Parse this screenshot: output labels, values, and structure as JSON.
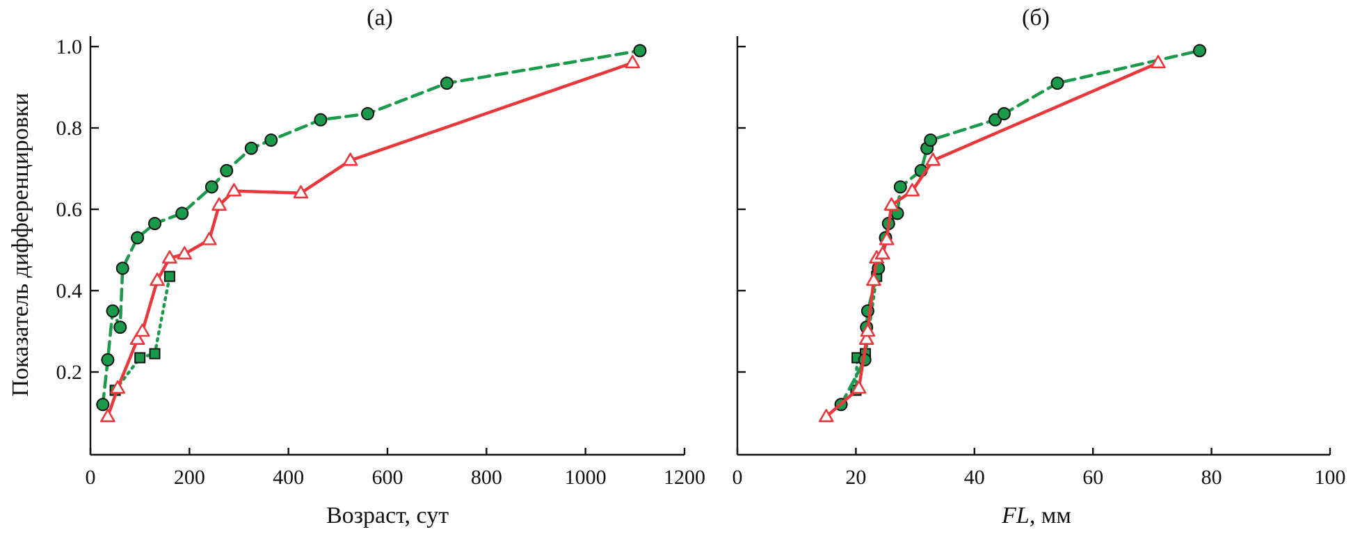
{
  "chart_data": [
    {
      "type": "line",
      "title": "(а)",
      "xlabel": "Возраст, сут",
      "ylabel": "Показатель дифференцировки",
      "xlim": [
        0,
        1200
      ],
      "ylim": [
        0,
        1.0
      ],
      "xticks": [
        "0",
        "200",
        "400",
        "600",
        "800",
        "1000",
        "1200"
      ],
      "yticks": [
        "0.2",
        "0.4",
        "0.6",
        "0.8",
        "1.0"
      ],
      "grid": false,
      "series": [
        {
          "marker": "circle",
          "line": "dashed",
          "color": "#1a9a4a",
          "x": [
            25,
            35,
            45,
            60,
            65,
            95,
            130,
            185,
            245,
            275,
            325,
            365,
            465,
            560,
            720,
            1110
          ],
          "y": [
            0.12,
            0.23,
            0.35,
            0.31,
            0.455,
            0.53,
            0.565,
            0.59,
            0.655,
            0.695,
            0.75,
            0.77,
            0.82,
            0.835,
            0.91,
            0.99
          ]
        },
        {
          "marker": "triangle",
          "line": "solid",
          "color": "#e8383c",
          "x": [
            35,
            55,
            95,
            105,
            135,
            160,
            190,
            240,
            260,
            290,
            425,
            525,
            1095
          ],
          "y": [
            0.09,
            0.16,
            0.28,
            0.3,
            0.425,
            0.48,
            0.49,
            0.525,
            0.61,
            0.645,
            0.64,
            0.72,
            0.96
          ]
        },
        {
          "marker": "square",
          "line": "dotted",
          "color": "#1a9a4a",
          "x": [
            50,
            100,
            130,
            160
          ],
          "y": [
            0.155,
            0.235,
            0.245,
            0.435
          ]
        }
      ]
    },
    {
      "type": "line",
      "title": "(б)",
      "xlabel_italic": "FL",
      "xlabel_rest": ", мм",
      "xlim": [
        0,
        100
      ],
      "ylim": [
        0,
        1.0
      ],
      "xticks": [
        "0",
        "20",
        "40",
        "60",
        "80",
        "100"
      ],
      "grid": false,
      "series": [
        {
          "marker": "circle",
          "line": "dashed",
          "color": "#1a9a4a",
          "x": [
            17.5,
            21.5,
            21.8,
            22.0,
            23.8,
            25.0,
            25.5,
            27.0,
            27.5,
            31.0,
            32.0,
            32.6,
            43.5,
            45.0,
            54.0,
            78.0
          ],
          "y": [
            0.12,
            0.23,
            0.31,
            0.35,
            0.455,
            0.53,
            0.565,
            0.59,
            0.655,
            0.695,
            0.75,
            0.77,
            0.82,
            0.835,
            0.91,
            0.99
          ]
        },
        {
          "marker": "triangle",
          "line": "solid",
          "color": "#e8383c",
          "x": [
            15.0,
            20.5,
            21.8,
            22.0,
            23.0,
            23.5,
            24.5,
            25.2,
            26.0,
            29.5,
            33.0,
            71.0
          ],
          "y": [
            0.09,
            0.16,
            0.28,
            0.3,
            0.425,
            0.48,
            0.49,
            0.525,
            0.61,
            0.645,
            0.72,
            0.96
          ]
        },
        {
          "marker": "square",
          "line": "dotted",
          "color": "#1a9a4a",
          "x": [
            20.0,
            20.2,
            21.6,
            23.5
          ],
          "y": [
            0.155,
            0.235,
            0.245,
            0.435
          ]
        }
      ]
    }
  ]
}
